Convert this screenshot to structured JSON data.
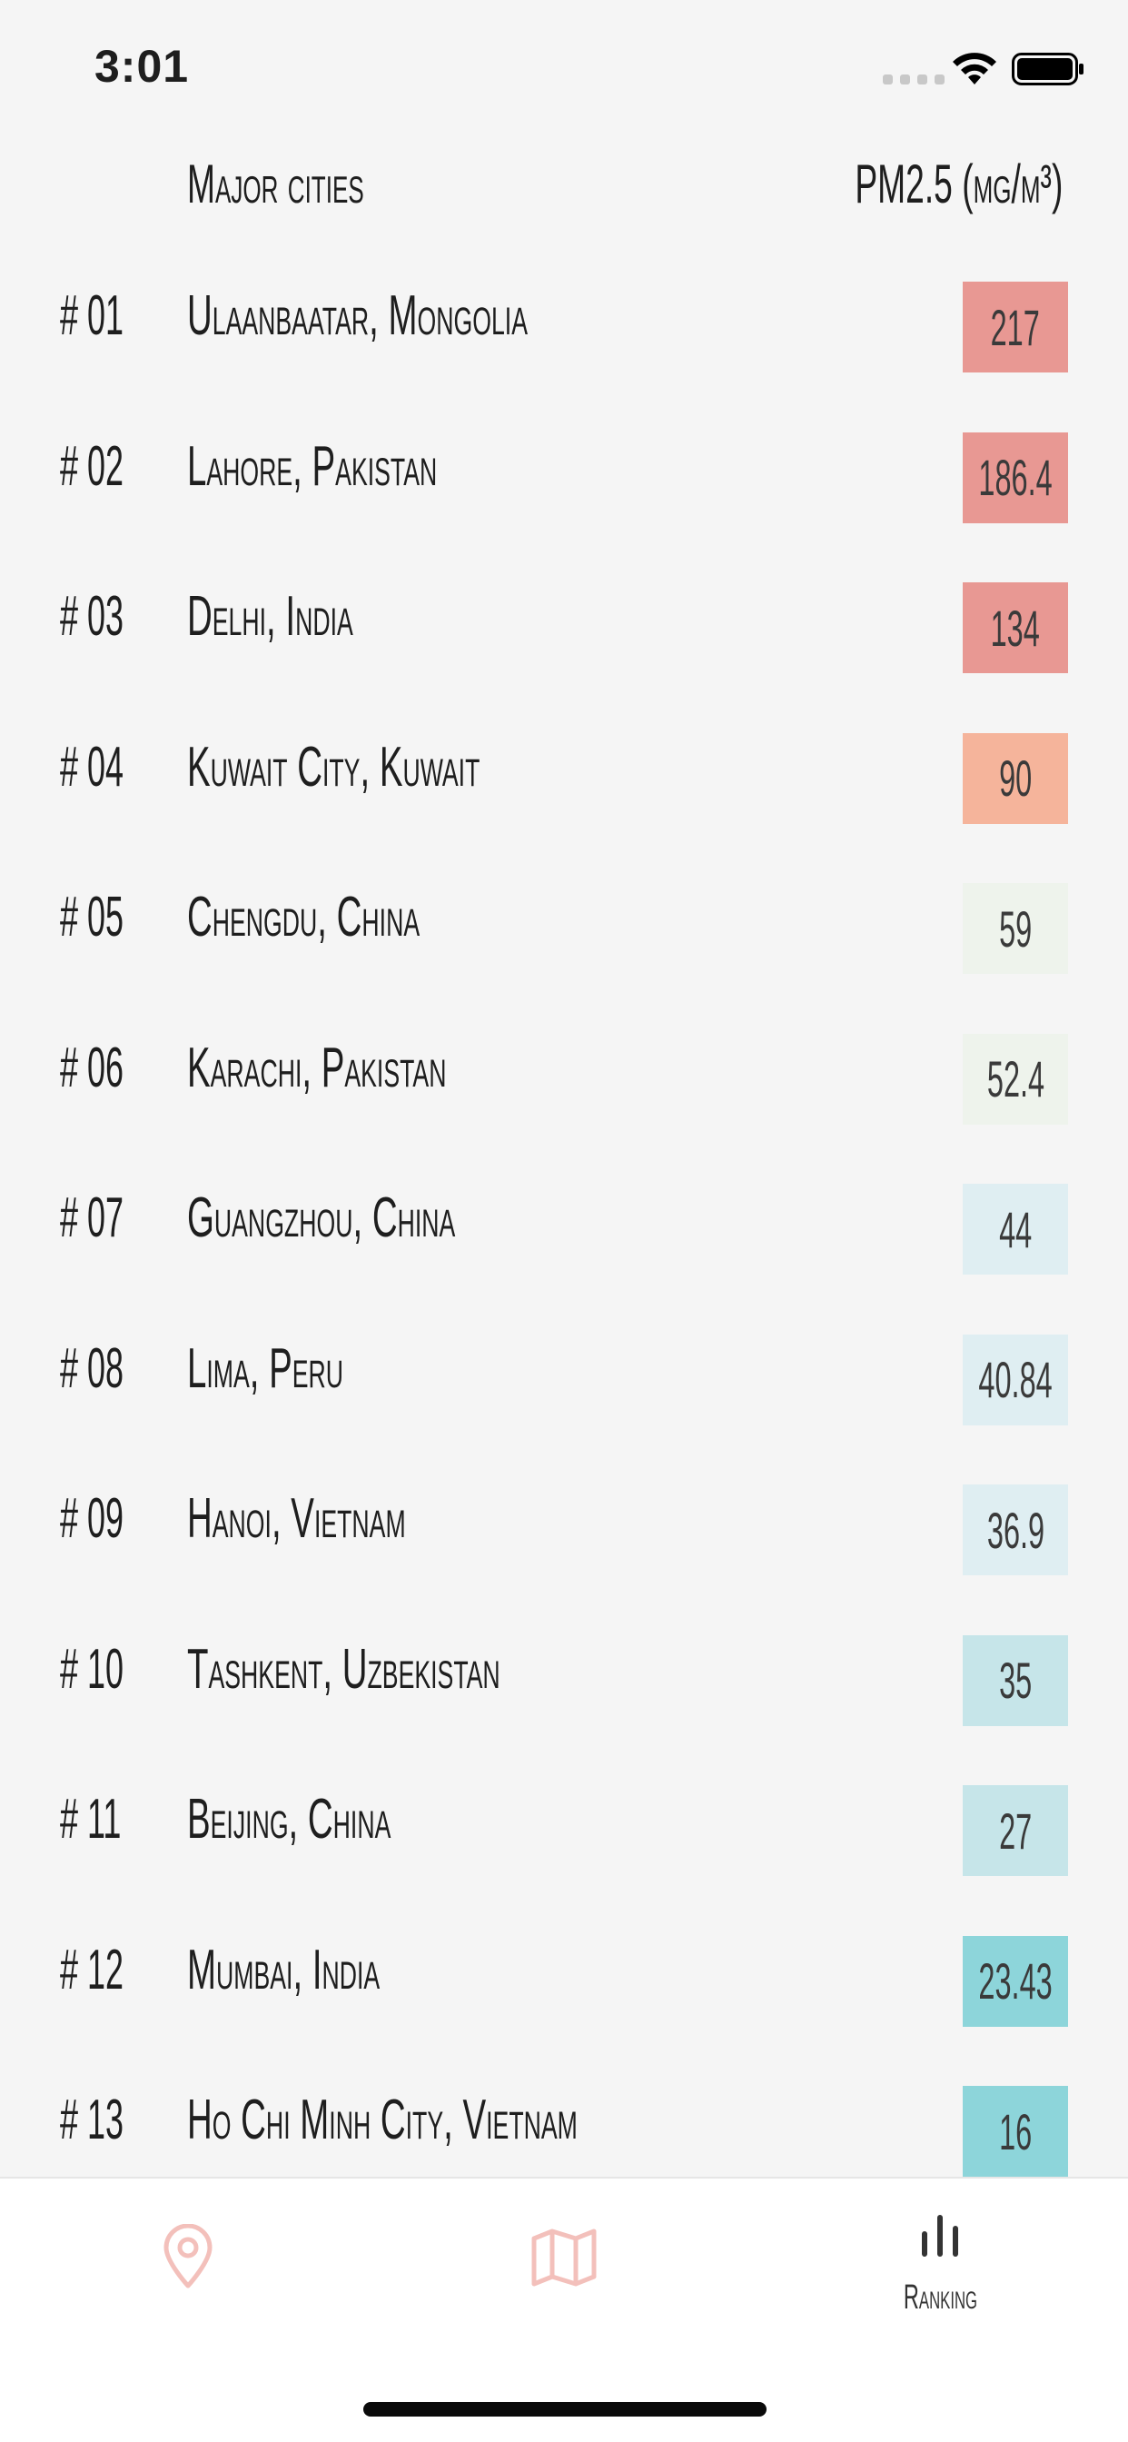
{
  "status_bar": {
    "time": "3:01"
  },
  "header": {
    "cities_label": "Major cities",
    "pm_label": "PM2.5 (μg/m³)"
  },
  "rankings": [
    {
      "rank": "# 01",
      "city": "Ulaanbaatar, Mongolia",
      "pm25": "217",
      "color": "#e89893"
    },
    {
      "rank": "# 02",
      "city": "Lahore, Pakistan",
      "pm25": "186.4",
      "color": "#e89893"
    },
    {
      "rank": "# 03",
      "city": "Delhi, India",
      "pm25": "134",
      "color": "#e89893"
    },
    {
      "rank": "# 04",
      "city": "Kuwait City, Kuwait",
      "pm25": "90",
      "color": "#f5b49b"
    },
    {
      "rank": "# 05",
      "city": "Chengdu, China",
      "pm25": "59",
      "color": "#eef3ec"
    },
    {
      "rank": "# 06",
      "city": "Karachi, Pakistan",
      "pm25": "52.4",
      "color": "#eef3ec"
    },
    {
      "rank": "# 07",
      "city": "Guangzhou, China",
      "pm25": "44",
      "color": "#dfeef2"
    },
    {
      "rank": "# 08",
      "city": "Lima, Peru",
      "pm25": "40.84",
      "color": "#dfeef2"
    },
    {
      "rank": "# 09",
      "city": "Hanoi, Vietnam",
      "pm25": "36.9",
      "color": "#dfeef2"
    },
    {
      "rank": "# 10",
      "city": "Tashkent, Uzbekistan",
      "pm25": "35",
      "color": "#c6e5e9"
    },
    {
      "rank": "# 11",
      "city": "Beijing, China",
      "pm25": "27",
      "color": "#c6e5e9"
    },
    {
      "rank": "# 12",
      "city": "Mumbai, India",
      "pm25": "23.43",
      "color": "#8dd5da"
    },
    {
      "rank": "# 13",
      "city": "Ho Chi Minh City, Vietnam",
      "pm25": "16",
      "color": "#8dd5da"
    }
  ],
  "tab_bar": {
    "tabs": [
      {
        "icon": "location-pin-icon",
        "label": "",
        "color": "#f3c0bb"
      },
      {
        "icon": "map-icon",
        "label": "",
        "color": "#f3c0bb"
      },
      {
        "icon": "bar-chart-icon",
        "label": "Ranking",
        "color": "#333333"
      }
    ]
  }
}
